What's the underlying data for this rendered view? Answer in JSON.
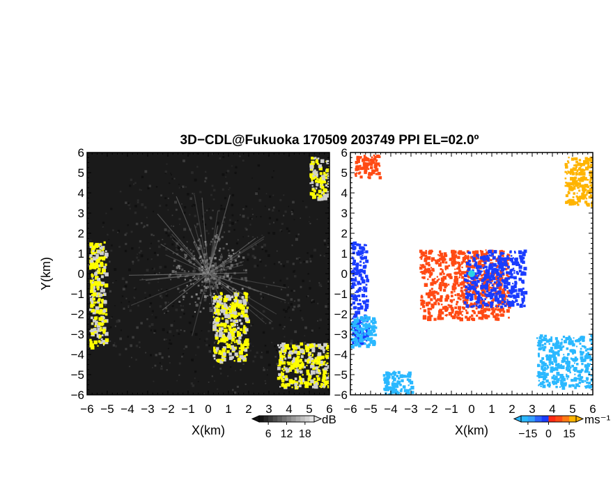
{
  "title": "3D−CDL@Fukuoka 170509 203749 PPI EL=02.0º",
  "colors": {
    "background": "#ffffff",
    "reflectivity_base": "#1a1a1a",
    "reflectivity_highlight": "#ffff00",
    "velocity_toward": "#1a3cff",
    "velocity_away": "#ff4a14",
    "velocity_far_toward": "#2ab8ff",
    "velocity_far_away": "#ffb400",
    "radar_center": "#2ad4e6"
  },
  "chart_data": [
    {
      "type": "heatmap",
      "title": "",
      "xlabel": "X(km)",
      "ylabel": "Y(km)",
      "xlim": [
        -6,
        6
      ],
      "ylim": [
        -6,
        6
      ],
      "xticks": [
        "−6",
        "−5",
        "−4",
        "−3",
        "−2",
        "−1",
        "0",
        "1",
        "2",
        "3",
        "4",
        "5",
        "6"
      ],
      "yticks": [
        "−6",
        "−5",
        "−4",
        "−3",
        "−2",
        "−1",
        "0",
        "1",
        "2",
        "3",
        "4",
        "5",
        "6"
      ],
      "colorbar": {
        "unit": "dB",
        "ticks": [
          "6",
          "12",
          "18"
        ],
        "range": [
          3,
          21
        ]
      },
      "highlight_regions": [
        {
          "name": "west-edge",
          "x": [
            -5.9,
            -5.1
          ],
          "y": [
            -3.6,
            1.6
          ]
        },
        {
          "name": "southeast-corner",
          "x": [
            3.4,
            6.0
          ],
          "y": [
            -5.6,
            -3.4
          ]
        },
        {
          "name": "northeast-corner",
          "x": [
            5.0,
            6.0
          ],
          "y": [
            3.8,
            5.8
          ]
        },
        {
          "name": "south-streak",
          "x": [
            0.2,
            1.9
          ],
          "y": [
            -4.3,
            -0.9
          ]
        }
      ]
    },
    {
      "type": "heatmap",
      "title": "",
      "xlabel": "X(km)",
      "ylabel": "",
      "xlim": [
        -6,
        6
      ],
      "ylim": [
        -6,
        6
      ],
      "xticks": [
        "−6",
        "−5",
        "−4",
        "−3",
        "−2",
        "−1",
        "0",
        "1",
        "2",
        "3",
        "4",
        "5",
        "6"
      ],
      "yticks": [
        "−6",
        "−5",
        "−4",
        "−3",
        "−2",
        "−1",
        "0",
        "1",
        "2",
        "3",
        "4",
        "5",
        "6"
      ],
      "colorbar": {
        "unit": "ms⁻¹",
        "ticks": [
          "−15",
          "0",
          "15"
        ],
        "range": [
          -20,
          20
        ]
      },
      "velocity_regions": [
        {
          "name": "west-edge",
          "x": [
            -6.0,
            -5.2
          ],
          "y": [
            -3.4,
            1.6
          ],
          "velocity": -8
        },
        {
          "name": "southwest-far",
          "x": [
            -6.0,
            -4.8
          ],
          "y": [
            -3.6,
            -2.0
          ],
          "velocity": -14
        },
        {
          "name": "south-strip",
          "x": [
            -4.4,
            -3.0
          ],
          "y": [
            -6.0,
            -4.8
          ],
          "velocity": -15
        },
        {
          "name": "southeast-far",
          "x": [
            3.2,
            6.0
          ],
          "y": [
            -5.6,
            -3.0
          ],
          "velocity": -14
        },
        {
          "name": "northwest-corner",
          "x": [
            -5.8,
            -4.6
          ],
          "y": [
            4.8,
            5.9
          ],
          "velocity": 13
        },
        {
          "name": "northeast-corner",
          "x": [
            4.6,
            6.0
          ],
          "y": [
            3.4,
            5.8
          ],
          "velocity": 17
        },
        {
          "name": "near-center-away",
          "x": [
            -2.6,
            1.8
          ],
          "y": [
            -2.2,
            1.2
          ],
          "velocity": 8
        },
        {
          "name": "near-center-toward",
          "x": [
            -0.4,
            2.6
          ],
          "y": [
            -1.6,
            1.2
          ],
          "velocity": -8
        }
      ]
    }
  ]
}
